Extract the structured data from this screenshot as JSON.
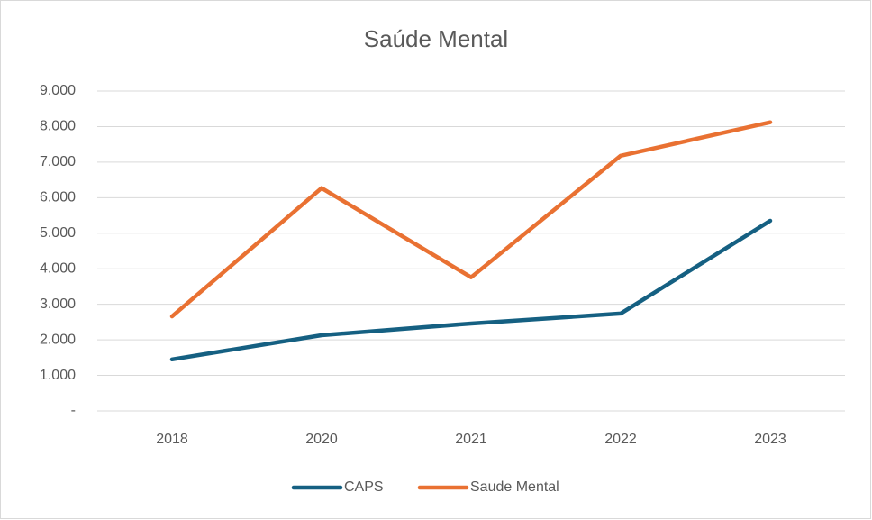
{
  "chart_data": {
    "type": "line",
    "title": "Saúde Mental",
    "categories": [
      "2018",
      "2020",
      "2021",
      "2022",
      "2023"
    ],
    "series": [
      {
        "name": "CAPS",
        "color": "#156082",
        "values": [
          1450,
          2130,
          2460,
          2740,
          5350
        ]
      },
      {
        "name": "Saude Mental",
        "color": "#e97132",
        "values": [
          2660,
          6270,
          3760,
          7180,
          8120
        ]
      }
    ],
    "ylim": [
      0,
      9000
    ],
    "yticks": [
      {
        "value": 0,
        "label": "-"
      },
      {
        "value": 1000,
        "label": "1.000"
      },
      {
        "value": 2000,
        "label": "2.000"
      },
      {
        "value": 3000,
        "label": "3.000"
      },
      {
        "value": 4000,
        "label": "4.000"
      },
      {
        "value": 5000,
        "label": "5.000"
      },
      {
        "value": 6000,
        "label": "6.000"
      },
      {
        "value": 7000,
        "label": "7.000"
      },
      {
        "value": 8000,
        "label": "8.000"
      },
      {
        "value": 9000,
        "label": "9.000"
      }
    ],
    "grid": true,
    "legend": "bottom"
  }
}
